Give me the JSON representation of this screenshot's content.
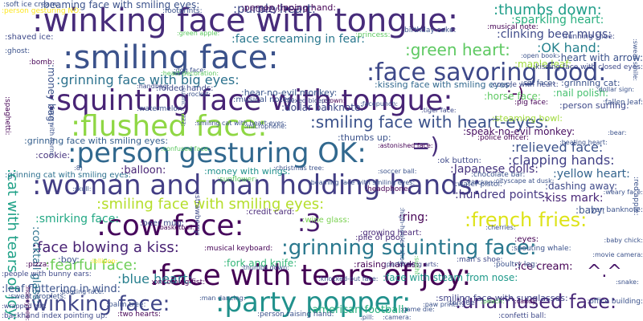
{
  "words": [
    {
      "text": ":winking face with tongue:",
      "color": "#472c7a"
    },
    {
      "text": ":smiling face:",
      "color": "#3b528b"
    },
    {
      "text": ":squinting face with tongue:",
      "color": "#482475"
    },
    {
      "text": ":face savoring food:",
      "color": "#3e4989"
    },
    {
      "text": ":flushed face:",
      "color": "#8fd744"
    },
    {
      "text": ":person gesturing OK:",
      "color": "#31688e"
    },
    {
      "text": "=)",
      "color": "#472d7b"
    },
    {
      "text": ":woman and man holding hands:",
      "color": "#433e85"
    },
    {
      "text": ":cow face:",
      "color": "#46085c"
    },
    {
      "text": ":3",
      "color": "#481b6d"
    },
    {
      "text": ":french fries:",
      "color": "#dde318"
    },
    {
      "text": ":grinning squinting face:",
      "color": "#2a788e"
    },
    {
      "text": ":face with tears of joy:",
      "color": "#440154"
    },
    {
      "text": ":party popper:",
      "color": "#21918c"
    },
    {
      "text": ":winking face:",
      "color": "#404688"
    },
    {
      "text": ":unamused face:",
      "color": "#482878"
    },
    {
      "text": ":green heart:",
      "color": "#5ec962"
    },
    {
      "text": ":smiling face with heart-eyes:",
      "color": "#3b528b"
    },
    {
      "text": ":grinning face with big eyes:",
      "color": "#2c728e"
    },
    {
      "text": ":smiling face with smiling eyes:",
      "color": "#b5de2b"
    },
    {
      "text": ":thumbs down:",
      "color": "#1f9e89"
    },
    {
      "text": ":OK hand:",
      "color": "#26828e"
    },
    {
      "text": ":relieved face:",
      "color": "#3b528b"
    },
    {
      "text": ":clapping hands:",
      "color": "#424086"
    },
    {
      "text": ":purple heart:",
      "color": "#3e4989"
    },
    {
      "text": ":-)",
      "color": "#440154"
    },
    {
      "text": ":face blowing a kiss:",
      "color": "#482173"
    },
    {
      "text": ":fearful face:",
      "color": "#6ece58"
    },
    {
      "text": ":blue heart:",
      "color": "#277f8e"
    },
    {
      "text": "^.^",
      "color": "#481769"
    },
    {
      "text": ":cat with tears of joy:",
      "color": "#1fa187"
    },
    {
      "text": ":sparkling heart:",
      "color": "#29af7f"
    },
    {
      "text": ":clinking beer mugs:",
      "color": "#3e4a89"
    },
    {
      "text": ":heart with arrow:",
      "color": "#3b528b"
    },
    {
      "text": ":kissing face with smiling eyes:",
      "color": "#31688e"
    },
    {
      "text": ":nail polish:",
      "color": "#46c06f"
    },
    {
      "text": ":yellow heart:",
      "color": "#33638d"
    },
    {
      "text": ":kiss mark:",
      "color": "#482576"
    },
    {
      "text": ":face screaming in fear:",
      "color": "#2a788e"
    },
    {
      "text": ":hear-no-evil monkey:",
      "color": "#39568c"
    },
    {
      "text": ":maple leaf:",
      "color": "#9fda3a"
    },
    {
      "text": ":speak-no-evil monkey:",
      "color": "#470d60"
    },
    {
      "text": ":smirking face:",
      "color": "#22a884"
    },
    {
      "text": ":ring:",
      "color": "#440154"
    },
    {
      "text": ":Japanese dolls:",
      "color": "#46337e"
    },
    {
      "text": ":hundred points:",
      "color": "#453781"
    },
    {
      "text": ":beaming face with smiling eyes:",
      "color": "#3b528b"
    },
    {
      "text": ":grinning cat with smiling eyes:",
      "color": "#2d708e"
    },
    {
      "text": ":ice cream:",
      "color": "#440154"
    },
    {
      "text": ":american football:",
      "color": "#29af7f"
    },
    {
      "text": ":fork and knife:",
      "color": "#35b779"
    },
    {
      "text": ":leaf fluttering in wind:",
      "color": "#3b528b"
    },
    {
      "text": ":cocktail glass:",
      "color": "#2c728e"
    },
    {
      "text": ":person tipping hand:",
      "color": "#440154"
    },
    {
      "text": ":grinning face with smiling eyes:",
      "color": "#355f8d"
    },
    {
      "text": ":face with steam from nose:",
      "color": "#1f9a8a"
    },
    {
      "text": ":smiling face with sunglasses:",
      "color": "#414487"
    },
    {
      "text": ":grinning cat:",
      "color": "#3b528b"
    },
    {
      "text": ":money with wings:",
      "color": "#21918c"
    },
    {
      "text": ":dollar banknote:",
      "color": "#3e4989"
    },
    {
      "text": ":balloon:",
      "color": "#482475"
    },
    {
      "text": ":boy:",
      "color": "#3b528b"
    },
    {
      "text": ":dashing away:",
      "color": "#3e4989"
    },
    {
      "text": ":growing heart:",
      "color": "#482878"
    },
    {
      "text": ":wine glass:",
      "color": "#7ad151"
    },
    {
      "text": ":raising hands:",
      "color": "#440154"
    },
    {
      "text": ":money bag:",
      "color": "#3b528b"
    },
    {
      "text": ":horse face:",
      "color": "#5ec962"
    },
    {
      "text": ":person surfing:",
      "color": "#3e4989"
    },
    {
      "text": ":eyes:",
      "color": "#440154"
    },
    {
      "text": ":baby:",
      "color": "#3b528b"
    },
    {
      "text": ":cookie:",
      "color": "#46337e"
    },
    {
      "text": ":dizzy:",
      "color": "#472d7b"
    },
    {
      "text": ":steaming bowl:",
      "color": "#9fda3a"
    },
    {
      "text": ":thumbs up:",
      "color": "#3b528b"
    },
    {
      "text": ":beer mug:",
      "color": "#3e4989"
    },
    {
      "text": ":credit card:",
      "color": "#482878"
    },
    {
      "text": ":shaved ice:",
      "color": "#3e4989"
    },
    {
      "text": ":person gesturing NO:",
      "color": "#fde725"
    },
    {
      "text": ":folded hands:",
      "color": "#3e4989"
    },
    {
      "text": ":ghost:",
      "color": "#3b528b"
    },
    {
      "text": ":bomb:",
      "color": "#440154"
    },
    {
      "text": ":musical notes:",
      "color": "#3b528b"
    },
    {
      "text": ":watermelon:",
      "color": "#3b528b"
    },
    {
      "text": ":soft ice cream:",
      "color": "#3b528b"
    },
    {
      "text": ":footprints:",
      "color": "#3b528b"
    },
    {
      "text": ":pile of poo:",
      "color": "#482878"
    },
    {
      "text": ":person raising hand:",
      "color": "#3b528b"
    },
    {
      "text": ":two hearts:",
      "color": "#440154"
    },
    {
      "text": ":backhand index pointing up:",
      "color": "#3e4989"
    },
    {
      "text": ":kissing face with closed eyes:",
      "color": "#3e4989"
    },
    {
      "text": ":pizza:",
      "color": "#440154"
    },
    {
      "text": ":tongue:",
      "color": "#3e4989"
    },
    {
      "text": ":poultry leg:",
      "color": "#3b528b"
    },
    {
      "text": ":man's shoe:",
      "color": "#3e4989"
    },
    {
      "text": ":yen banknote:",
      "color": "#3b528b"
    },
    {
      "text": ":police officer:",
      "color": "#440154"
    },
    {
      "text": ":red apple:",
      "color": "#3b528b"
    },
    {
      "text": ":people with bunny ears:",
      "color": "#3e4989"
    },
    {
      "text": ":sweat droplets:",
      "color": "#3b528b"
    },
    {
      "text": ":palm tree:",
      "color": "#3b528b"
    },
    {
      "text": ":wrapped gift:",
      "color": "#3e4989"
    },
    {
      "text": ":musical keyboard:",
      "color": "#440154"
    },
    {
      "text": ":oncoming fist:",
      "color": "#440154"
    },
    {
      "text": ":strawberry:",
      "color": "#3e4989"
    },
    {
      "text": ":basketball:",
      "color": "#440154"
    },
    {
      "text": ":chocolate bar:",
      "color": "#3b528b"
    },
    {
      "text": ":water pistol:",
      "color": "#3b528b"
    },
    {
      "text": ":spouting whale:",
      "color": "#3b528b"
    },
    {
      "text": ":headphone:",
      "color": "#440154"
    },
    {
      "text": ":sunflower:",
      "color": "#5ec962"
    },
    {
      "text": ":princess:",
      "color": "#5ec962"
    },
    {
      "text": ":birthday cake:",
      "color": "#3b528b"
    },
    {
      "text": ":couple with heart:",
      "color": "#3e4989"
    },
    {
      "text": ":running shoe:",
      "color": "#3e4989"
    },
    {
      "text": ":cat face:",
      "color": "#3b528b"
    },
    {
      "text": ":musical note:",
      "color": "#440154"
    },
    {
      "text": ":pig face:",
      "color": "#440154"
    },
    {
      "text": ":fallen leaf:",
      "color": "#3b528b"
    },
    {
      "text": ":green apple:",
      "color": "#5ec962"
    },
    {
      "text": ":handbag:",
      "color": "#3e4989"
    },
    {
      "text": ":sushi:",
      "color": "#3b528b"
    },
    {
      "text": ":face with horns:",
      "color": "#3b528b"
    },
    {
      "text": ":spaghetti:",
      "color": "#440154"
    },
    {
      "text": ":skull:",
      "color": "#3b528b"
    },
    {
      "text": ":performing arts:",
      "color": "#3e4989"
    },
    {
      "text": ":high-heeled shoe:",
      "color": "#3b528b"
    },
    {
      "text": ":office building:",
      "color": "#3b528b"
    },
    {
      "text": ":honeybee:",
      "color": "#440154"
    },
    {
      "text": ":lollipop:",
      "color": "#fde725"
    },
    {
      "text": ":snake:",
      "color": "#3b528b"
    },
    {
      "text": ":paw prints:",
      "color": "#3b528b"
    },
    {
      "text": ":confetti ball:",
      "color": "#3e4989"
    },
    {
      "text": ":movie camera:",
      "color": "#3b528b"
    },
    {
      "text": ":candy:",
      "color": "#440154"
    },
    {
      "text": ":bear:",
      "color": "#3b528b"
    },
    {
      "text": ":open book:",
      "color": "#3b528b"
    },
    {
      "text": ":tiger face:",
      "color": "#3e4989"
    },
    {
      "text": ":crown:",
      "color": "#440154"
    },
    {
      "text": ":chicken:",
      "color": "#3b528b"
    },
    {
      "text": ":beaming face with smiling eyes:",
      "color": "#3b528b"
    },
    {
      "text": ":cityscape at dusk:",
      "color": "#3b528b"
    },
    {
      "text": ":peach:",
      "color": "#5ec962"
    },
    {
      "text": ":dog face:",
      "color": "#3b528b"
    },
    {
      "text": ":thumbs down:",
      "color": "#3b528b"
    },
    {
      "text": ":zzz:",
      "color": "#3b528b"
    },
    {
      "text": ":flexed biceps:",
      "color": "#3e4989"
    },
    {
      "text": ":microphone:",
      "color": "#3b528b"
    },
    {
      "text": ":astonished face:",
      "color": "#440154"
    },
    {
      "text": ":baby chick:",
      "color": "#3b528b"
    },
    {
      "text": ":christmas tree:",
      "color": "#3b528b"
    },
    {
      "text": ":ok button:",
      "color": "#3e4989"
    },
    {
      "text": ":sweat smile:",
      "color": "#3b528b"
    },
    {
      "text": ":8)",
      "color": "#3b528b"
    },
    {
      "text": ":pouting face:",
      "color": "#3b528b"
    },
    {
      "text": ":knocked-out face:",
      "color": "#3b528b"
    },
    {
      "text": ":heart decoration:",
      "color": "#5ec962"
    },
    {
      "text": ":weary face:",
      "color": "#3b528b"
    },
    {
      "text": ":man dancing:",
      "color": "#3b528b"
    },
    {
      "text": ":sushi:",
      "color": "#5ec962"
    },
    {
      "text": ":game die:",
      "color": "#3b528b"
    },
    {
      "text": ":camera:",
      "color": "#3b528b"
    },
    {
      "text": ":pill:",
      "color": "#3b528b"
    },
    {
      "text": ":cherries:",
      "color": "#3b528b"
    },
    {
      "text": ":beating heart:",
      "color": "#3b528b"
    },
    {
      "text": ":rocket:",
      "color": "#3b528b"
    },
    {
      "text": ":soccer ball:",
      "color": "#3b528b"
    },
    {
      "text": ":smiling cat with heart-eyes:",
      "color": "#3b528b"
    },
    {
      "text": ":facepunch:",
      "color": "#3b528b"
    },
    {
      "text": ":confused face:",
      "color": "#5ec962"
    },
    {
      "text": ":dollar sign:",
      "color": "#3b528b"
    },
    {
      "text": ":angry face:",
      "color": "#3b528b"
    },
    {
      "text": ":hamburger:",
      "color": "#3b528b"
    },
    {
      "text": ":rose:",
      "color": "#5ec962"
    },
    {
      "text": ":shortcake:",
      "color": "#3b528b"
    },
    {
      "text": ":popcorn:",
      "color": "#3b528b"
    }
  ]
}
